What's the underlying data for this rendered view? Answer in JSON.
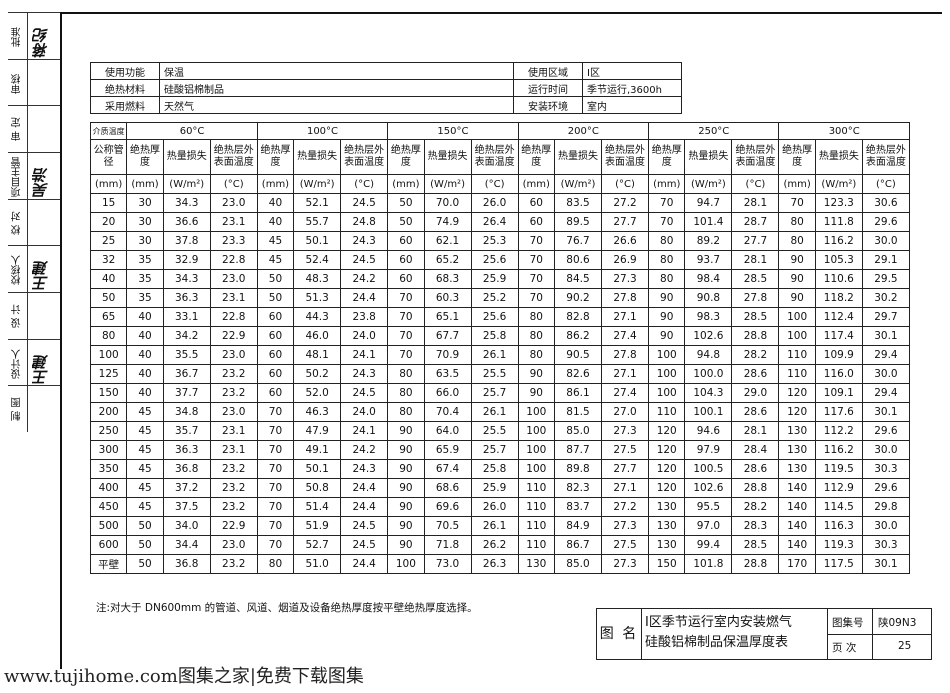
{
  "side_block": [
    {
      "label": "批准",
      "sig": "蒋纪"
    },
    {
      "label": "审核",
      "sig": ""
    },
    {
      "label": "审 定",
      "sig": ""
    },
    {
      "label": "项目主管",
      "sig": "吴浩"
    },
    {
      "label": "校 对",
      "sig": ""
    },
    {
      "label": "校核人",
      "sig": "王建"
    },
    {
      "label": "设 计",
      "sig": ""
    },
    {
      "label": "设计人",
      "sig": "王建"
    },
    {
      "label": "制 图",
      "sig": ""
    }
  ],
  "header": {
    "use_label": "使用功能",
    "use_value": "保温",
    "material_label": "绝热材料",
    "material_value": "硅酸铝棉制品",
    "fuel_label": "采用燃料",
    "fuel_value": "天然气",
    "zone_label": "使用区域",
    "zone_value": "Ⅰ区",
    "time_label": "运行时间",
    "time_value": "季节运行,3600h",
    "env_label": "安装环境",
    "env_value": "室内"
  },
  "table": {
    "corner": "介质温度",
    "temps": [
      "60°C",
      "100°C",
      "150°C",
      "200°C",
      "250°C",
      "300°C"
    ],
    "col0_header": "公称管径",
    "sub_headers": [
      "绝热厚度",
      "热量损失",
      "绝热层外表面温度"
    ],
    "col0_unit": "(mm)",
    "units": [
      "(mm)",
      "(W/m²)",
      "(°C)"
    ],
    "rows": [
      [
        "15",
        "30",
        "34.3",
        "23.0",
        "40",
        "52.1",
        "24.5",
        "50",
        "70.0",
        "26.0",
        "60",
        "83.5",
        "27.2",
        "70",
        "94.7",
        "28.1",
        "70",
        "123.3",
        "30.6"
      ],
      [
        "20",
        "30",
        "36.6",
        "23.1",
        "40",
        "55.7",
        "24.8",
        "50",
        "74.9",
        "26.4",
        "60",
        "89.5",
        "27.7",
        "70",
        "101.4",
        "28.7",
        "80",
        "111.8",
        "29.6"
      ],
      [
        "25",
        "30",
        "37.8",
        "23.3",
        "45",
        "50.1",
        "24.3",
        "60",
        "62.1",
        "25.3",
        "70",
        "76.7",
        "26.6",
        "80",
        "89.2",
        "27.7",
        "80",
        "116.2",
        "30.0"
      ],
      [
        "32",
        "35",
        "32.9",
        "22.8",
        "45",
        "52.4",
        "24.5",
        "60",
        "65.2",
        "25.6",
        "70",
        "80.6",
        "26.9",
        "80",
        "93.7",
        "28.1",
        "90",
        "105.3",
        "29.1"
      ],
      [
        "40",
        "35",
        "34.3",
        "23.0",
        "50",
        "48.3",
        "24.2",
        "60",
        "68.3",
        "25.9",
        "70",
        "84.5",
        "27.3",
        "80",
        "98.4",
        "28.5",
        "90",
        "110.6",
        "29.5"
      ],
      [
        "50",
        "35",
        "36.3",
        "23.1",
        "50",
        "51.3",
        "24.4",
        "70",
        "60.3",
        "25.2",
        "70",
        "90.2",
        "27.8",
        "90",
        "90.8",
        "27.8",
        "90",
        "118.2",
        "30.2"
      ],
      [
        "65",
        "40",
        "33.1",
        "22.8",
        "60",
        "44.3",
        "23.8",
        "70",
        "65.1",
        "25.6",
        "80",
        "82.8",
        "27.1",
        "90",
        "98.3",
        "28.5",
        "100",
        "112.4",
        "29.7"
      ],
      [
        "80",
        "40",
        "34.2",
        "22.9",
        "60",
        "46.0",
        "24.0",
        "70",
        "67.7",
        "25.8",
        "80",
        "86.2",
        "27.4",
        "90",
        "102.6",
        "28.8",
        "100",
        "117.4",
        "30.1"
      ],
      [
        "100",
        "40",
        "35.5",
        "23.0",
        "60",
        "48.1",
        "24.1",
        "70",
        "70.9",
        "26.1",
        "80",
        "90.5",
        "27.8",
        "100",
        "94.8",
        "28.2",
        "110",
        "109.9",
        "29.4"
      ],
      [
        "125",
        "40",
        "36.7",
        "23.2",
        "60",
        "50.2",
        "24.3",
        "80",
        "63.5",
        "25.5",
        "90",
        "82.6",
        "27.1",
        "100",
        "100.0",
        "28.6",
        "110",
        "116.0",
        "30.0"
      ],
      [
        "150",
        "40",
        "37.7",
        "23.2",
        "60",
        "52.0",
        "24.5",
        "80",
        "66.0",
        "25.7",
        "90",
        "86.1",
        "27.4",
        "100",
        "104.3",
        "29.0",
        "120",
        "109.1",
        "29.4"
      ],
      [
        "200",
        "45",
        "34.8",
        "23.0",
        "70",
        "46.3",
        "24.0",
        "80",
        "70.4",
        "26.1",
        "100",
        "81.5",
        "27.0",
        "110",
        "100.1",
        "28.6",
        "120",
        "117.6",
        "30.1"
      ],
      [
        "250",
        "45",
        "35.7",
        "23.1",
        "70",
        "47.9",
        "24.1",
        "90",
        "64.0",
        "25.5",
        "100",
        "85.0",
        "27.3",
        "120",
        "94.6",
        "28.1",
        "130",
        "112.2",
        "29.6"
      ],
      [
        "300",
        "45",
        "36.3",
        "23.1",
        "70",
        "49.1",
        "24.2",
        "90",
        "65.9",
        "25.7",
        "100",
        "87.7",
        "27.5",
        "120",
        "97.9",
        "28.4",
        "130",
        "116.2",
        "30.0"
      ],
      [
        "350",
        "45",
        "36.8",
        "23.2",
        "70",
        "50.1",
        "24.3",
        "90",
        "67.4",
        "25.8",
        "100",
        "89.8",
        "27.7",
        "120",
        "100.5",
        "28.6",
        "130",
        "119.5",
        "30.3"
      ],
      [
        "400",
        "45",
        "37.2",
        "23.2",
        "70",
        "50.8",
        "24.4",
        "90",
        "68.6",
        "25.9",
        "110",
        "82.3",
        "27.1",
        "120",
        "102.6",
        "28.8",
        "140",
        "112.9",
        "29.6"
      ],
      [
        "450",
        "45",
        "37.5",
        "23.2",
        "70",
        "51.4",
        "24.4",
        "90",
        "69.6",
        "26.0",
        "110",
        "83.7",
        "27.2",
        "130",
        "95.5",
        "28.2",
        "140",
        "114.5",
        "29.8"
      ],
      [
        "500",
        "50",
        "34.0",
        "22.9",
        "70",
        "51.9",
        "24.5",
        "90",
        "70.5",
        "26.1",
        "110",
        "84.9",
        "27.3",
        "130",
        "97.0",
        "28.3",
        "140",
        "116.3",
        "30.0"
      ],
      [
        "600",
        "50",
        "34.4",
        "23.0",
        "70",
        "52.7",
        "24.5",
        "90",
        "71.8",
        "26.2",
        "110",
        "86.7",
        "27.5",
        "130",
        "99.4",
        "28.5",
        "140",
        "119.3",
        "30.3"
      ],
      [
        "平壁",
        "50",
        "36.8",
        "23.2",
        "80",
        "51.0",
        "24.4",
        "100",
        "73.0",
        "26.3",
        "130",
        "85.0",
        "27.3",
        "150",
        "101.8",
        "28.8",
        "170",
        "117.5",
        "30.1"
      ]
    ]
  },
  "note": "注:对大于 DN600mm 的管道、风道、烟道及设备绝热厚度按平壁绝热厚度选择。",
  "title_block": {
    "label": "图 名",
    "title_line1": "Ⅰ区季节运行室内安装燃气",
    "title_line2": "硅酸铝棉制品保温厚度表",
    "atlas_label": "图集号",
    "atlas_value": "陕09N3",
    "page_label": "页 次",
    "page_value": "25"
  },
  "footer": "www.tujihome.com图集之家|免费下载图集"
}
